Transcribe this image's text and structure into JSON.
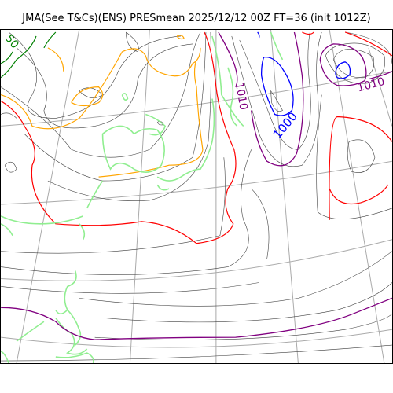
{
  "title": "JMA(See T&Cs)(ENS) PRESmean 2025/12/12 00Z FT=36 (init 1012Z)",
  "contour_labels": {
    "isobar_1010_center": "1010",
    "isobar_1000": "1000",
    "isobar_1010_east": "1010",
    "partial_edge": "50"
  },
  "colors": {
    "isobar_thin": "#404040",
    "isobar_1000": "#0000ff",
    "isobar_1010": "#800080",
    "isobar_red": "#ff0000",
    "isobar_orange": "#ffa500",
    "isobar_green": "#008000",
    "coastline": "#90ee90",
    "graticule": "#aaaaaa"
  }
}
